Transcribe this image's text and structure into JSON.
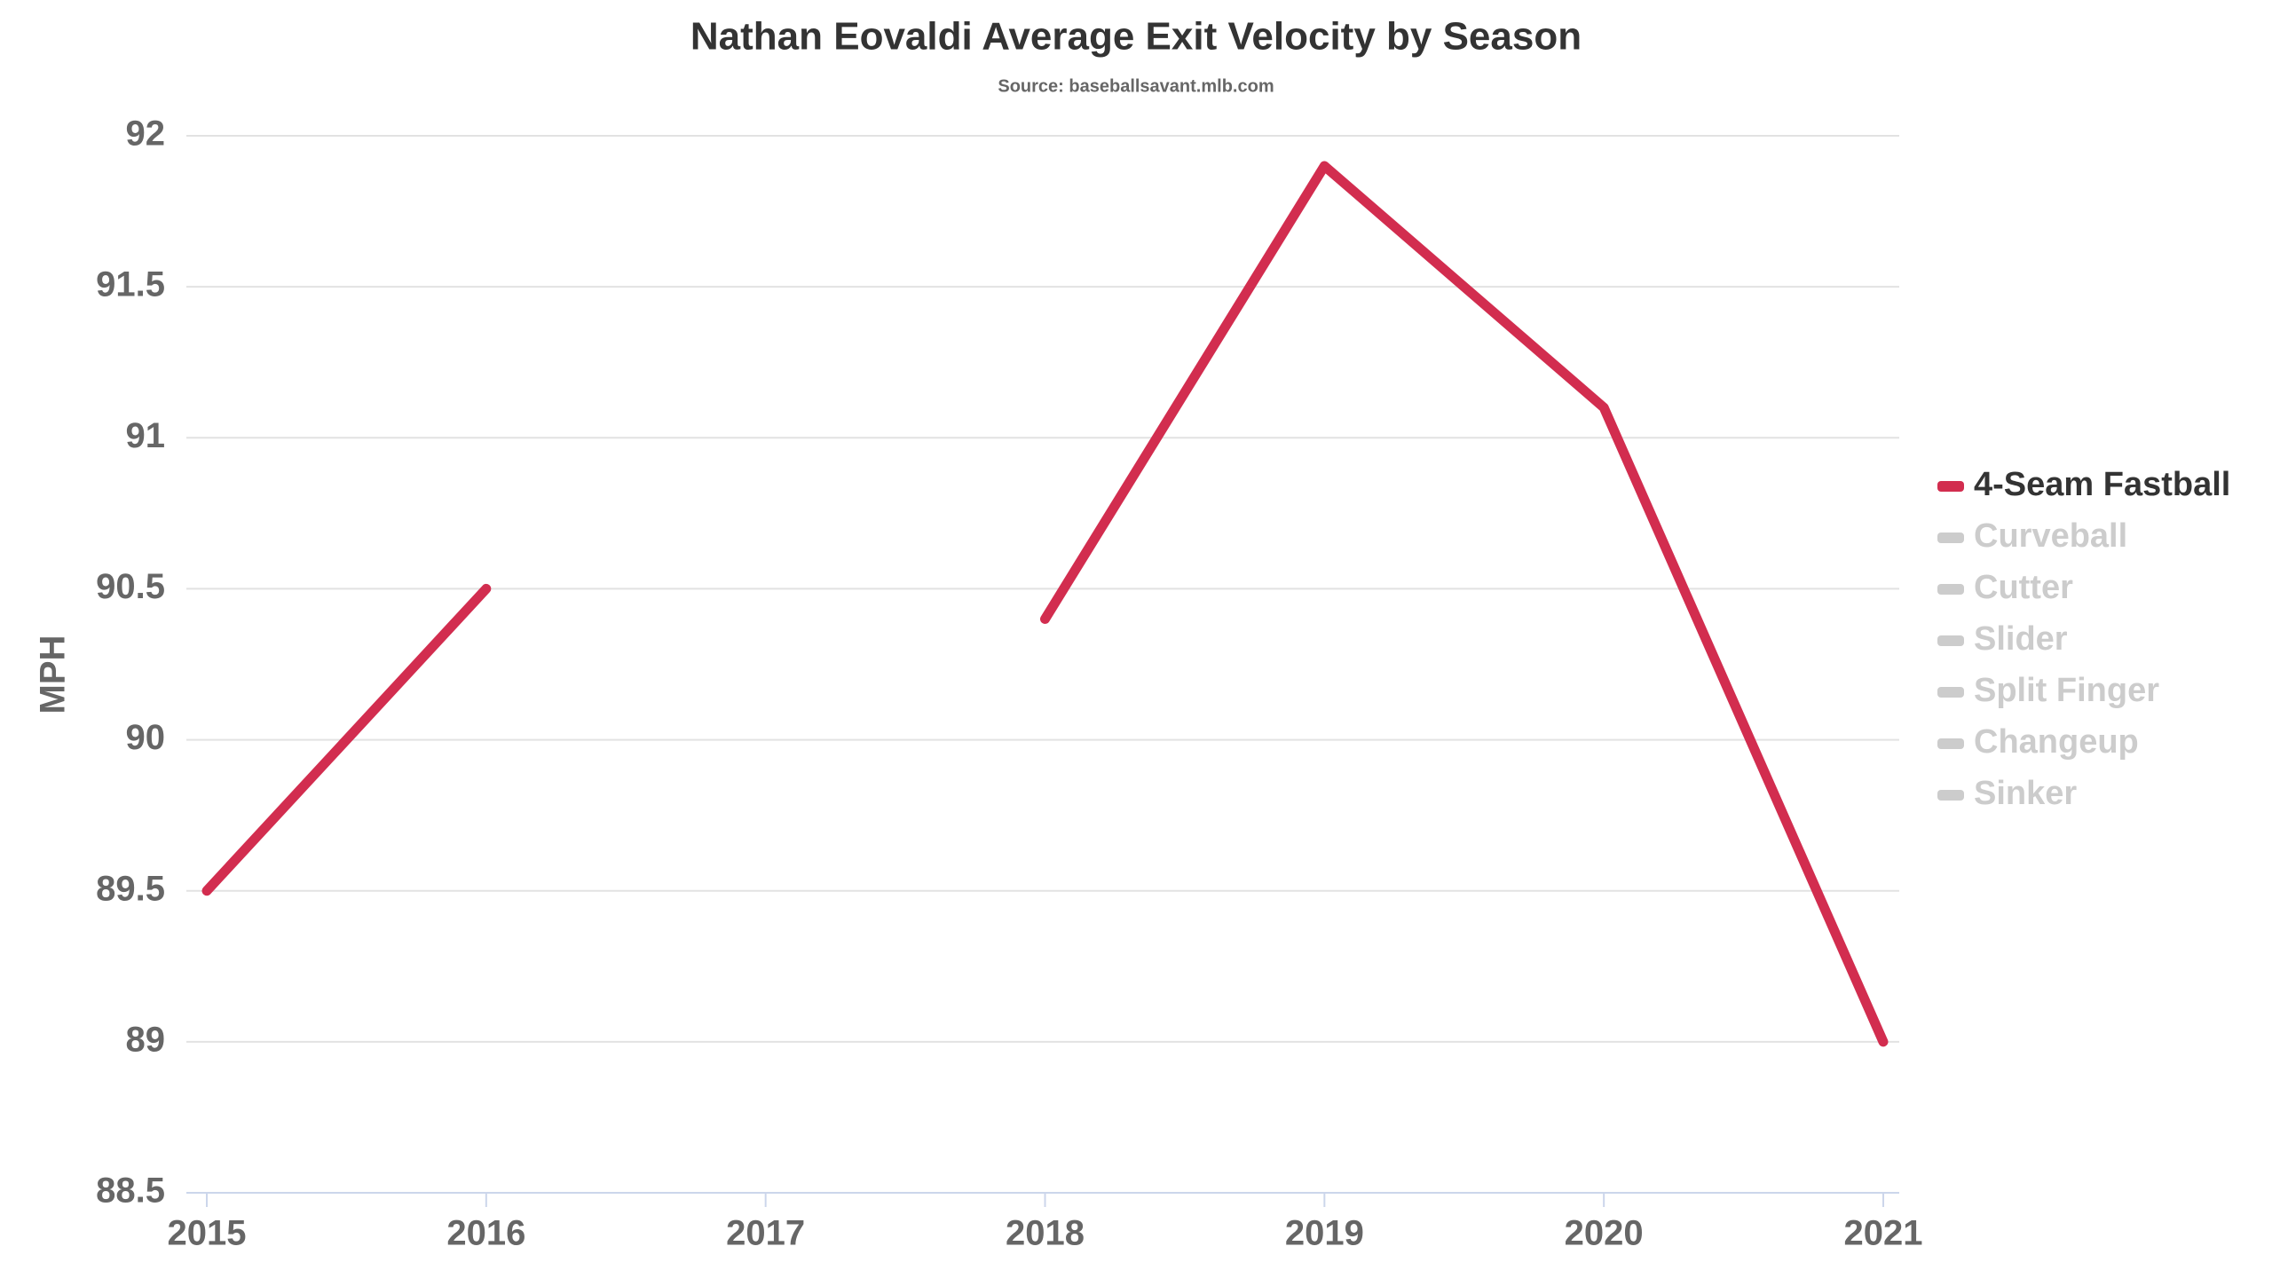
{
  "chart_data": {
    "type": "line",
    "title": "Nathan Eovaldi Average Exit Velocity by Season",
    "subtitle": "Source: baseballsavant.mlb.com",
    "y_label": "MPH",
    "x": [
      2015,
      2016,
      2017,
      2018,
      2019,
      2020,
      2021
    ],
    "xlim": [
      2015,
      2021
    ],
    "xticks": [
      2015,
      2016,
      2017,
      2018,
      2019,
      2020,
      2021
    ],
    "ylim": [
      88.5,
      92
    ],
    "yticks": [
      88.5,
      89,
      89.5,
      90,
      90.5,
      91,
      91.5,
      92
    ],
    "grid": true,
    "legend": "right",
    "series": [
      {
        "name": "4-Seam Fastball",
        "color": "#d22d4f",
        "visible": true,
        "values": [
          89.5,
          90.5,
          null,
          90.4,
          91.9,
          91.1,
          89.0
        ]
      },
      {
        "name": "Curveball",
        "color": "#cccccc",
        "visible": false
      },
      {
        "name": "Cutter",
        "color": "#cccccc",
        "visible": false
      },
      {
        "name": "Slider",
        "color": "#cccccc",
        "visible": false
      },
      {
        "name": "Split Finger",
        "color": "#cccccc",
        "visible": false
      },
      {
        "name": "Changeup",
        "color": "#cccccc",
        "visible": false
      },
      {
        "name": "Sinker",
        "color": "#cccccc",
        "visible": false
      }
    ]
  }
}
